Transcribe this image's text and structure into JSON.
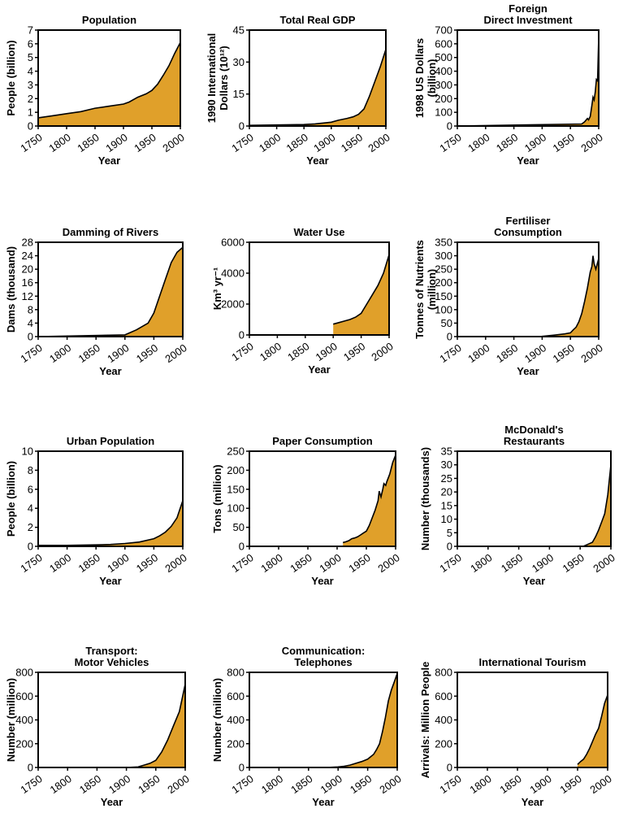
{
  "chart_data": [
    {
      "type": "area",
      "title_lines": [
        "Population"
      ],
      "ylabel_lines": [
        "People (billion)"
      ],
      "xlabel": "Year",
      "xticks": [
        "1750",
        "1800",
        "1850",
        "1900",
        "1950",
        "2000"
      ],
      "xlim": [
        1750,
        2000
      ],
      "yticks": [
        "0",
        "1",
        "2",
        "3",
        "4",
        "5",
        "6",
        "7"
      ],
      "ylim": [
        0,
        7
      ],
      "x": [
        1750,
        1775,
        1800,
        1825,
        1850,
        1875,
        1900,
        1910,
        1925,
        1940,
        1950,
        1960,
        1970,
        1980,
        1990,
        2000
      ],
      "y": [
        0.6,
        0.75,
        0.9,
        1.05,
        1.3,
        1.45,
        1.6,
        1.75,
        2.1,
        2.35,
        2.6,
        3.05,
        3.7,
        4.4,
        5.3,
        6.1
      ]
    },
    {
      "type": "area",
      "title_lines": [
        "Total Real GDP"
      ],
      "ylabel_lines": [
        "1990 International",
        "Dollars (10¹²)"
      ],
      "xlabel": "Year",
      "xticks": [
        "1750",
        "1800",
        "1850",
        "1900",
        "1950",
        "2000"
      ],
      "xlim": [
        1750,
        2000
      ],
      "yticks": [
        "0",
        "15",
        "30",
        "45"
      ],
      "ylim": [
        0,
        45
      ],
      "x": [
        1750,
        1800,
        1850,
        1870,
        1900,
        1913,
        1929,
        1940,
        1950,
        1960,
        1970,
        1980,
        1990,
        2000
      ],
      "y": [
        0.3,
        0.5,
        0.7,
        1,
        1.8,
        2.7,
        3.6,
        4.3,
        5.5,
        8,
        14,
        21,
        28,
        36
      ]
    },
    {
      "type": "area",
      "title_lines": [
        "Foreign",
        "Direct Investment"
      ],
      "ylabel_lines": [
        "1998 US Dollars",
        "(billion)"
      ],
      "xlabel": "Year",
      "xticks": [
        "1750",
        "1800",
        "1850",
        "1900",
        "1950",
        "2000"
      ],
      "xlim": [
        1750,
        2000
      ],
      "yticks": [
        "0",
        "100",
        "200",
        "300",
        "400",
        "500",
        "600",
        "700"
      ],
      "ylim": [
        0,
        700
      ],
      "x": [
        1750,
        1970,
        1975,
        1980,
        1982,
        1985,
        1988,
        1990,
        1992,
        1994,
        1996,
        1998,
        2000
      ],
      "y": [
        0,
        15,
        30,
        55,
        45,
        70,
        150,
        210,
        190,
        250,
        340,
        330,
        650
      ]
    },
    {
      "type": "area",
      "title_lines": [
        "Damming of Rivers"
      ],
      "ylabel_lines": [
        "Dams (thousand)"
      ],
      "xlabel": "Year",
      "xticks": [
        "1750",
        "1800",
        "1850",
        "1900",
        "1950",
        "2000"
      ],
      "xlim": [
        1750,
        2000
      ],
      "yticks": [
        "0",
        "4",
        "8",
        "12",
        "16",
        "20",
        "24",
        "28"
      ],
      "ylim": [
        0,
        28
      ],
      "x": [
        1750,
        1900,
        1920,
        1940,
        1950,
        1960,
        1970,
        1980,
        1990,
        2000
      ],
      "y": [
        0,
        0.5,
        2,
        4,
        7,
        12,
        17,
        22,
        25,
        26.5
      ]
    },
    {
      "type": "area",
      "title_lines": [
        "Water Use"
      ],
      "ylabel_lines": [
        "Km³ yr⁻¹"
      ],
      "xlabel": "Year",
      "xticks": [
        "1750",
        "1800",
        "1850",
        "1900",
        "1950",
        "2000"
      ],
      "xlim": [
        1750,
        2000
      ],
      "yticks": [
        "0",
        "2000",
        "4000",
        "6000"
      ],
      "ylim": [
        0,
        6000
      ],
      "x": [
        1900,
        1910,
        1920,
        1930,
        1940,
        1950,
        1960,
        1970,
        1980,
        1990,
        2000
      ],
      "y": [
        700,
        800,
        900,
        1000,
        1150,
        1400,
        2000,
        2600,
        3200,
        4000,
        5200
      ]
    },
    {
      "type": "area",
      "title_lines": [
        "Fertiliser",
        "Consumption"
      ],
      "ylabel_lines": [
        "Tonnes of Nutrients",
        "(million)"
      ],
      "xlabel": "Year",
      "xticks": [
        "1750",
        "1800",
        "1850",
        "1900",
        "1950",
        "2000"
      ],
      "xlim": [
        1750,
        2000
      ],
      "yticks": [
        "0",
        "50",
        "100",
        "150",
        "200",
        "250",
        "300",
        "350"
      ],
      "ylim": [
        0,
        350
      ],
      "x": [
        1750,
        1900,
        1920,
        1940,
        1950,
        1955,
        1960,
        1965,
        1970,
        1975,
        1980,
        1985,
        1988,
        1990,
        1992,
        1995,
        2000
      ],
      "y": [
        0,
        1,
        5,
        10,
        14,
        25,
        35,
        55,
        85,
        130,
        180,
        240,
        260,
        300,
        270,
        250,
        290
      ]
    },
    {
      "type": "area",
      "title_lines": [
        "Urban Population"
      ],
      "ylabel_lines": [
        "People (billion)"
      ],
      "xlabel": "Year",
      "xticks": [
        "1750",
        "1800",
        "1850",
        "1900",
        "1950",
        "2000"
      ],
      "xlim": [
        1750,
        2000
      ],
      "yticks": [
        "0",
        "2",
        "4",
        "6",
        "8",
        "10"
      ],
      "ylim": [
        0,
        10
      ],
      "x": [
        1750,
        1800,
        1850,
        1875,
        1900,
        1925,
        1950,
        1960,
        1970,
        1980,
        1990,
        2000
      ],
      "y": [
        0.1,
        0.1,
        0.15,
        0.2,
        0.3,
        0.45,
        0.8,
        1.1,
        1.5,
        2.1,
        3.0,
        4.8
      ]
    },
    {
      "type": "area",
      "title_lines": [
        "Paper Consumption"
      ],
      "ylabel_lines": [
        "Tons (million)"
      ],
      "xlabel": "Year",
      "xticks": [
        "1750",
        "1800",
        "1850",
        "1900",
        "1950",
        "2000"
      ],
      "xlim": [
        1750,
        2000
      ],
      "yticks": [
        "0",
        "50",
        "100",
        "150",
        "200",
        "250"
      ],
      "ylim": [
        0,
        250
      ],
      "x": [
        1910,
        1915,
        1920,
        1925,
        1930,
        1935,
        1940,
        1945,
        1950,
        1955,
        1960,
        1965,
        1970,
        1972,
        1975,
        1978,
        1980,
        1983,
        1985,
        1990,
        1995,
        2000
      ],
      "y": [
        10,
        12,
        15,
        20,
        22,
        25,
        30,
        35,
        40,
        55,
        75,
        95,
        120,
        145,
        130,
        150,
        165,
        160,
        170,
        190,
        220,
        240
      ]
    },
    {
      "type": "area",
      "title_lines": [
        "McDonald's",
        "Restaurants"
      ],
      "ylabel_lines": [
        "Number (thousands)"
      ],
      "xlabel": "Year",
      "xticks": [
        "1750",
        "1800",
        "1850",
        "1900",
        "1950",
        "2000"
      ],
      "xlim": [
        1750,
        2000
      ],
      "yticks": [
        "0",
        "5",
        "10",
        "15",
        "20",
        "25",
        "30",
        "35"
      ],
      "ylim": [
        0,
        35
      ],
      "x": [
        1955,
        1960,
        1965,
        1970,
        1975,
        1980,
        1985,
        1990,
        1995,
        2000
      ],
      "y": [
        0,
        0.5,
        1,
        1.5,
        3.5,
        6,
        9,
        12,
        19,
        30
      ]
    },
    {
      "type": "area",
      "title_lines": [
        "Transport:",
        "Motor Vehicles"
      ],
      "ylabel_lines": [
        "Number (million)"
      ],
      "xlabel": "Year",
      "xticks": [
        "1750",
        "1800",
        "1850",
        "1900",
        "1950",
        "2000"
      ],
      "xlim": [
        1750,
        2000
      ],
      "yticks": [
        "0",
        "200",
        "400",
        "600",
        "800"
      ],
      "ylim": [
        0,
        800
      ],
      "x": [
        1750,
        1800,
        1900,
        1920,
        1930,
        1940,
        1950,
        1960,
        1970,
        1980,
        1990,
        2000
      ],
      "y": [
        0,
        0,
        0,
        5,
        20,
        35,
        60,
        130,
        230,
        350,
        470,
        700
      ]
    },
    {
      "type": "area",
      "title_lines": [
        "Communication:",
        "Telephones"
      ],
      "ylabel_lines": [
        "Number (million)"
      ],
      "xlabel": "Year",
      "xticks": [
        "1750",
        "1800",
        "1850",
        "1900",
        "1950",
        "2000"
      ],
      "xlim": [
        1750,
        2000
      ],
      "yticks": [
        "0",
        "200",
        "400",
        "600",
        "800"
      ],
      "ylim": [
        0,
        800
      ],
      "x": [
        1750,
        1880,
        1900,
        1910,
        1920,
        1930,
        1940,
        1950,
        1960,
        1965,
        1970,
        1975,
        1980,
        1985,
        1990,
        1995,
        2000
      ],
      "y": [
        0,
        0,
        5,
        10,
        20,
        35,
        50,
        70,
        110,
        150,
        200,
        300,
        420,
        560,
        650,
        720,
        790
      ]
    },
    {
      "type": "area",
      "title_lines": [
        "International Tourism"
      ],
      "ylabel_lines": [
        "Arrivals: Million People"
      ],
      "xlabel": "Year",
      "xticks": [
        "1750",
        "1800",
        "1850",
        "1900",
        "1950",
        "2000"
      ],
      "xlim": [
        1750,
        2000
      ],
      "yticks": [
        "0",
        "200",
        "400",
        "600",
        "800"
      ],
      "ylim": [
        0,
        800
      ],
      "x": [
        1950,
        1955,
        1960,
        1965,
        1970,
        1975,
        1980,
        1985,
        1990,
        1995,
        2000
      ],
      "y": [
        25,
        50,
        70,
        110,
        160,
        220,
        280,
        330,
        430,
        540,
        610
      ]
    }
  ]
}
